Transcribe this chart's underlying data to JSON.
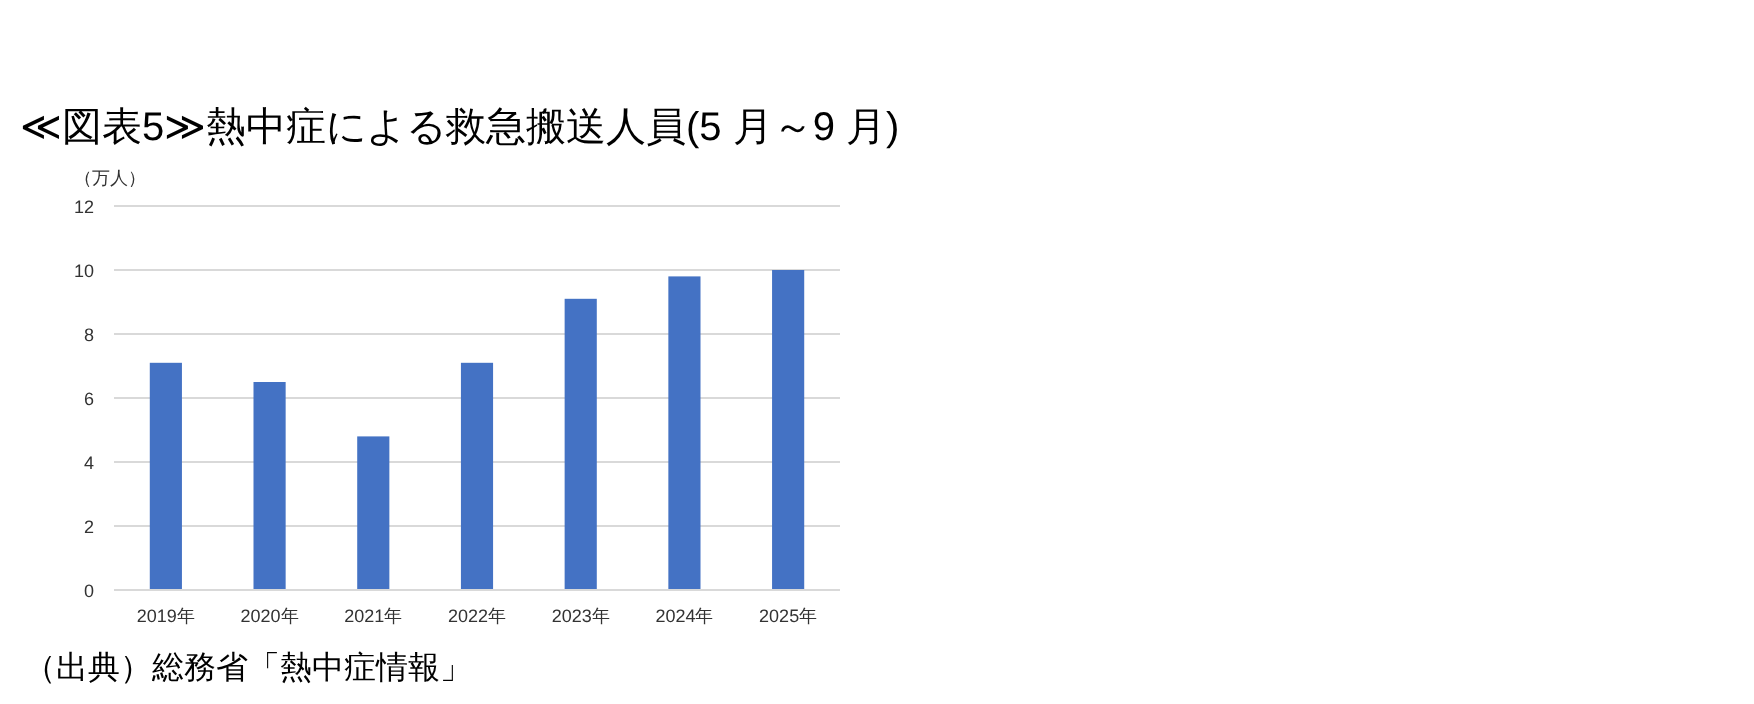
{
  "chart_data": {
    "type": "bar",
    "title": "≪図表5≫熱中症による救急搬送人員(5 月～9 月)",
    "ylabel": "（万人）",
    "categories": [
      "2019年",
      "2020年",
      "2021年",
      "2022年",
      "2023年",
      "2024年",
      "2025年"
    ],
    "values": [
      7.1,
      6.5,
      4.8,
      7.1,
      9.1,
      9.8,
      10.0
    ],
    "color": "#4472c4",
    "ylim": [
      0,
      12
    ],
    "yticks": [
      0,
      2,
      4,
      6,
      8,
      10,
      12
    ],
    "grid": "y",
    "annotations": [
      "（出典）総務省「熱中症情報」"
    ]
  }
}
